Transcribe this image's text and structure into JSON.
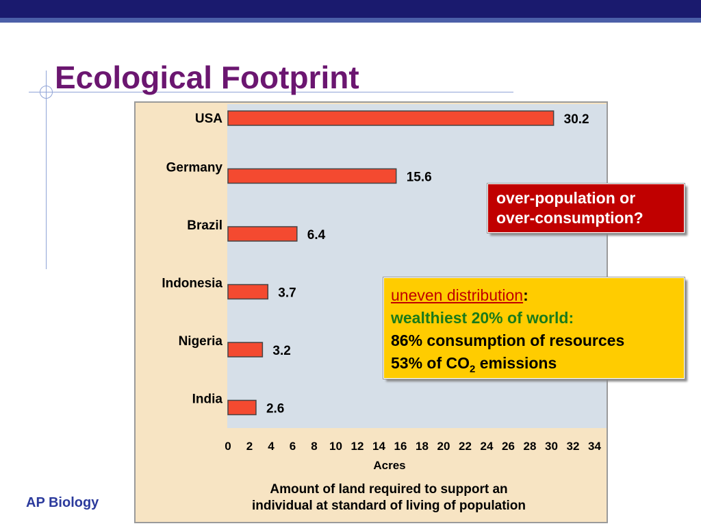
{
  "slide": {
    "title": "Ecological Footprint",
    "footer": "AP Biology"
  },
  "callouts": {
    "question": [
      "over-population or",
      "over-consumption?"
    ],
    "distribution": {
      "heading": "uneven distribution",
      "heading_suffix": ":",
      "line2": "wealthiest 20% of world:",
      "line3": "86% consumption of resources",
      "line4_prefix": "53% of CO",
      "line4_sub": "2",
      "line4_suffix": " emissions"
    }
  },
  "colors": {
    "bar_fill": "#f44a30",
    "plot_bg": "#d6dfe8",
    "panel_bg": "#f7e4c3",
    "title": "#6b1670",
    "callout_red": "#c00000",
    "callout_yellow": "#ffcc00"
  },
  "chart_data": {
    "type": "bar",
    "orientation": "horizontal",
    "categories": [
      "USA",
      "Germany",
      "Brazil",
      "Indonesia",
      "Nigeria",
      "India"
    ],
    "values": [
      30.2,
      15.6,
      6.4,
      3.7,
      3.2,
      2.6
    ],
    "value_labels": [
      "30.2",
      "15.6",
      "6.4",
      "3.7",
      "3.2",
      "2.6"
    ],
    "xlabel": "Acres",
    "xticks": [
      "0",
      "2",
      "4",
      "6",
      "8",
      "10",
      "12",
      "14",
      "16",
      "18",
      "20",
      "22",
      "24",
      "26",
      "28",
      "30",
      "32",
      "34"
    ],
    "xlim": [
      0,
      35
    ],
    "caption": [
      "Amount of land required to support an",
      "individual at standard of living of population"
    ]
  }
}
